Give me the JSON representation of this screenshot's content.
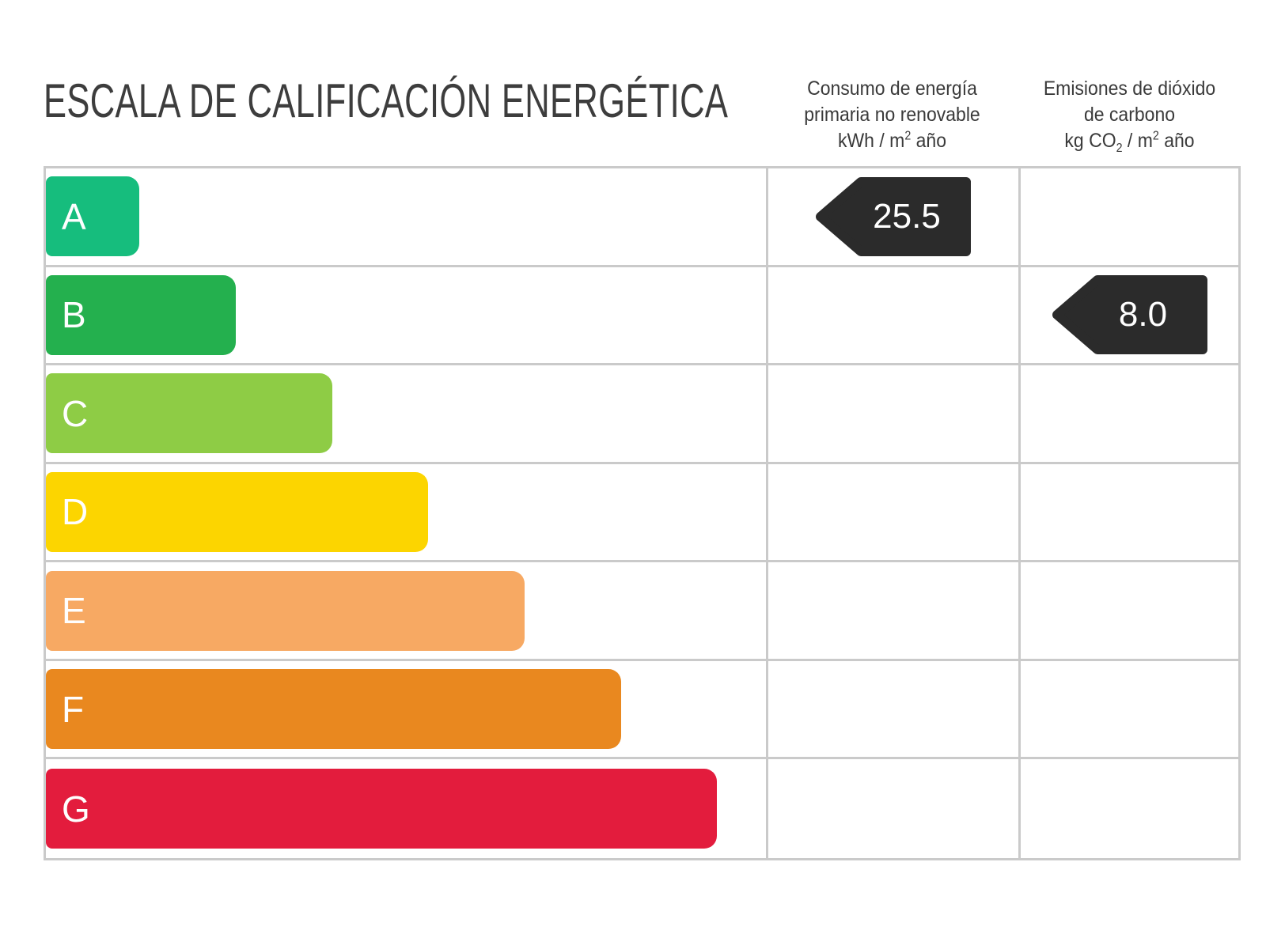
{
  "title": "ESCALA DE CALIFICACIÓN ENERGÉTICA",
  "header": {
    "consumo": {
      "line1": "Consumo de energía",
      "line2": "primaria no renovable",
      "unit_pre": "kWh / m",
      "unit_sup": "2",
      "unit_post": " año"
    },
    "emisiones": {
      "line1": "Emisiones de dióxido",
      "line2": "de carbono",
      "unit_pre": "kg CO",
      "unit_sub": "2",
      "unit_mid": " / m",
      "unit_sup": "2",
      "unit_post": " año"
    }
  },
  "styles": {
    "arrow_color": "#2b2b2b",
    "grid_color": "#cacaca",
    "text_color": "#3c3c3c",
    "bar_letter_color": "#ffffff"
  },
  "chart_data": {
    "type": "bar",
    "title": "ESCALA DE CALIFICACIÓN ENERGÉTICA",
    "categories": [
      "A",
      "B",
      "C",
      "D",
      "E",
      "F",
      "G"
    ],
    "bar_colors": [
      "#16bd7d",
      "#24b04e",
      "#8ecc45",
      "#fcd500",
      "#f7a963",
      "#e9881f",
      "#e31c3d"
    ],
    "bar_width_pct": [
      13.0,
      26.4,
      39.8,
      53.1,
      66.5,
      79.9,
      93.2
    ],
    "value_columns": [
      "Consumo de energía primaria no renovable kWh / m2 año",
      "Emisiones de dióxido de carbono kg CO2 / m2 año"
    ],
    "indicators": [
      {
        "column": "consumo",
        "row": "A",
        "value": 25.5,
        "label": "25.5"
      },
      {
        "column": "emisiones",
        "row": "B",
        "value": 8.0,
        "label": "8.0"
      }
    ],
    "legend_position": "none",
    "grid": true
  }
}
